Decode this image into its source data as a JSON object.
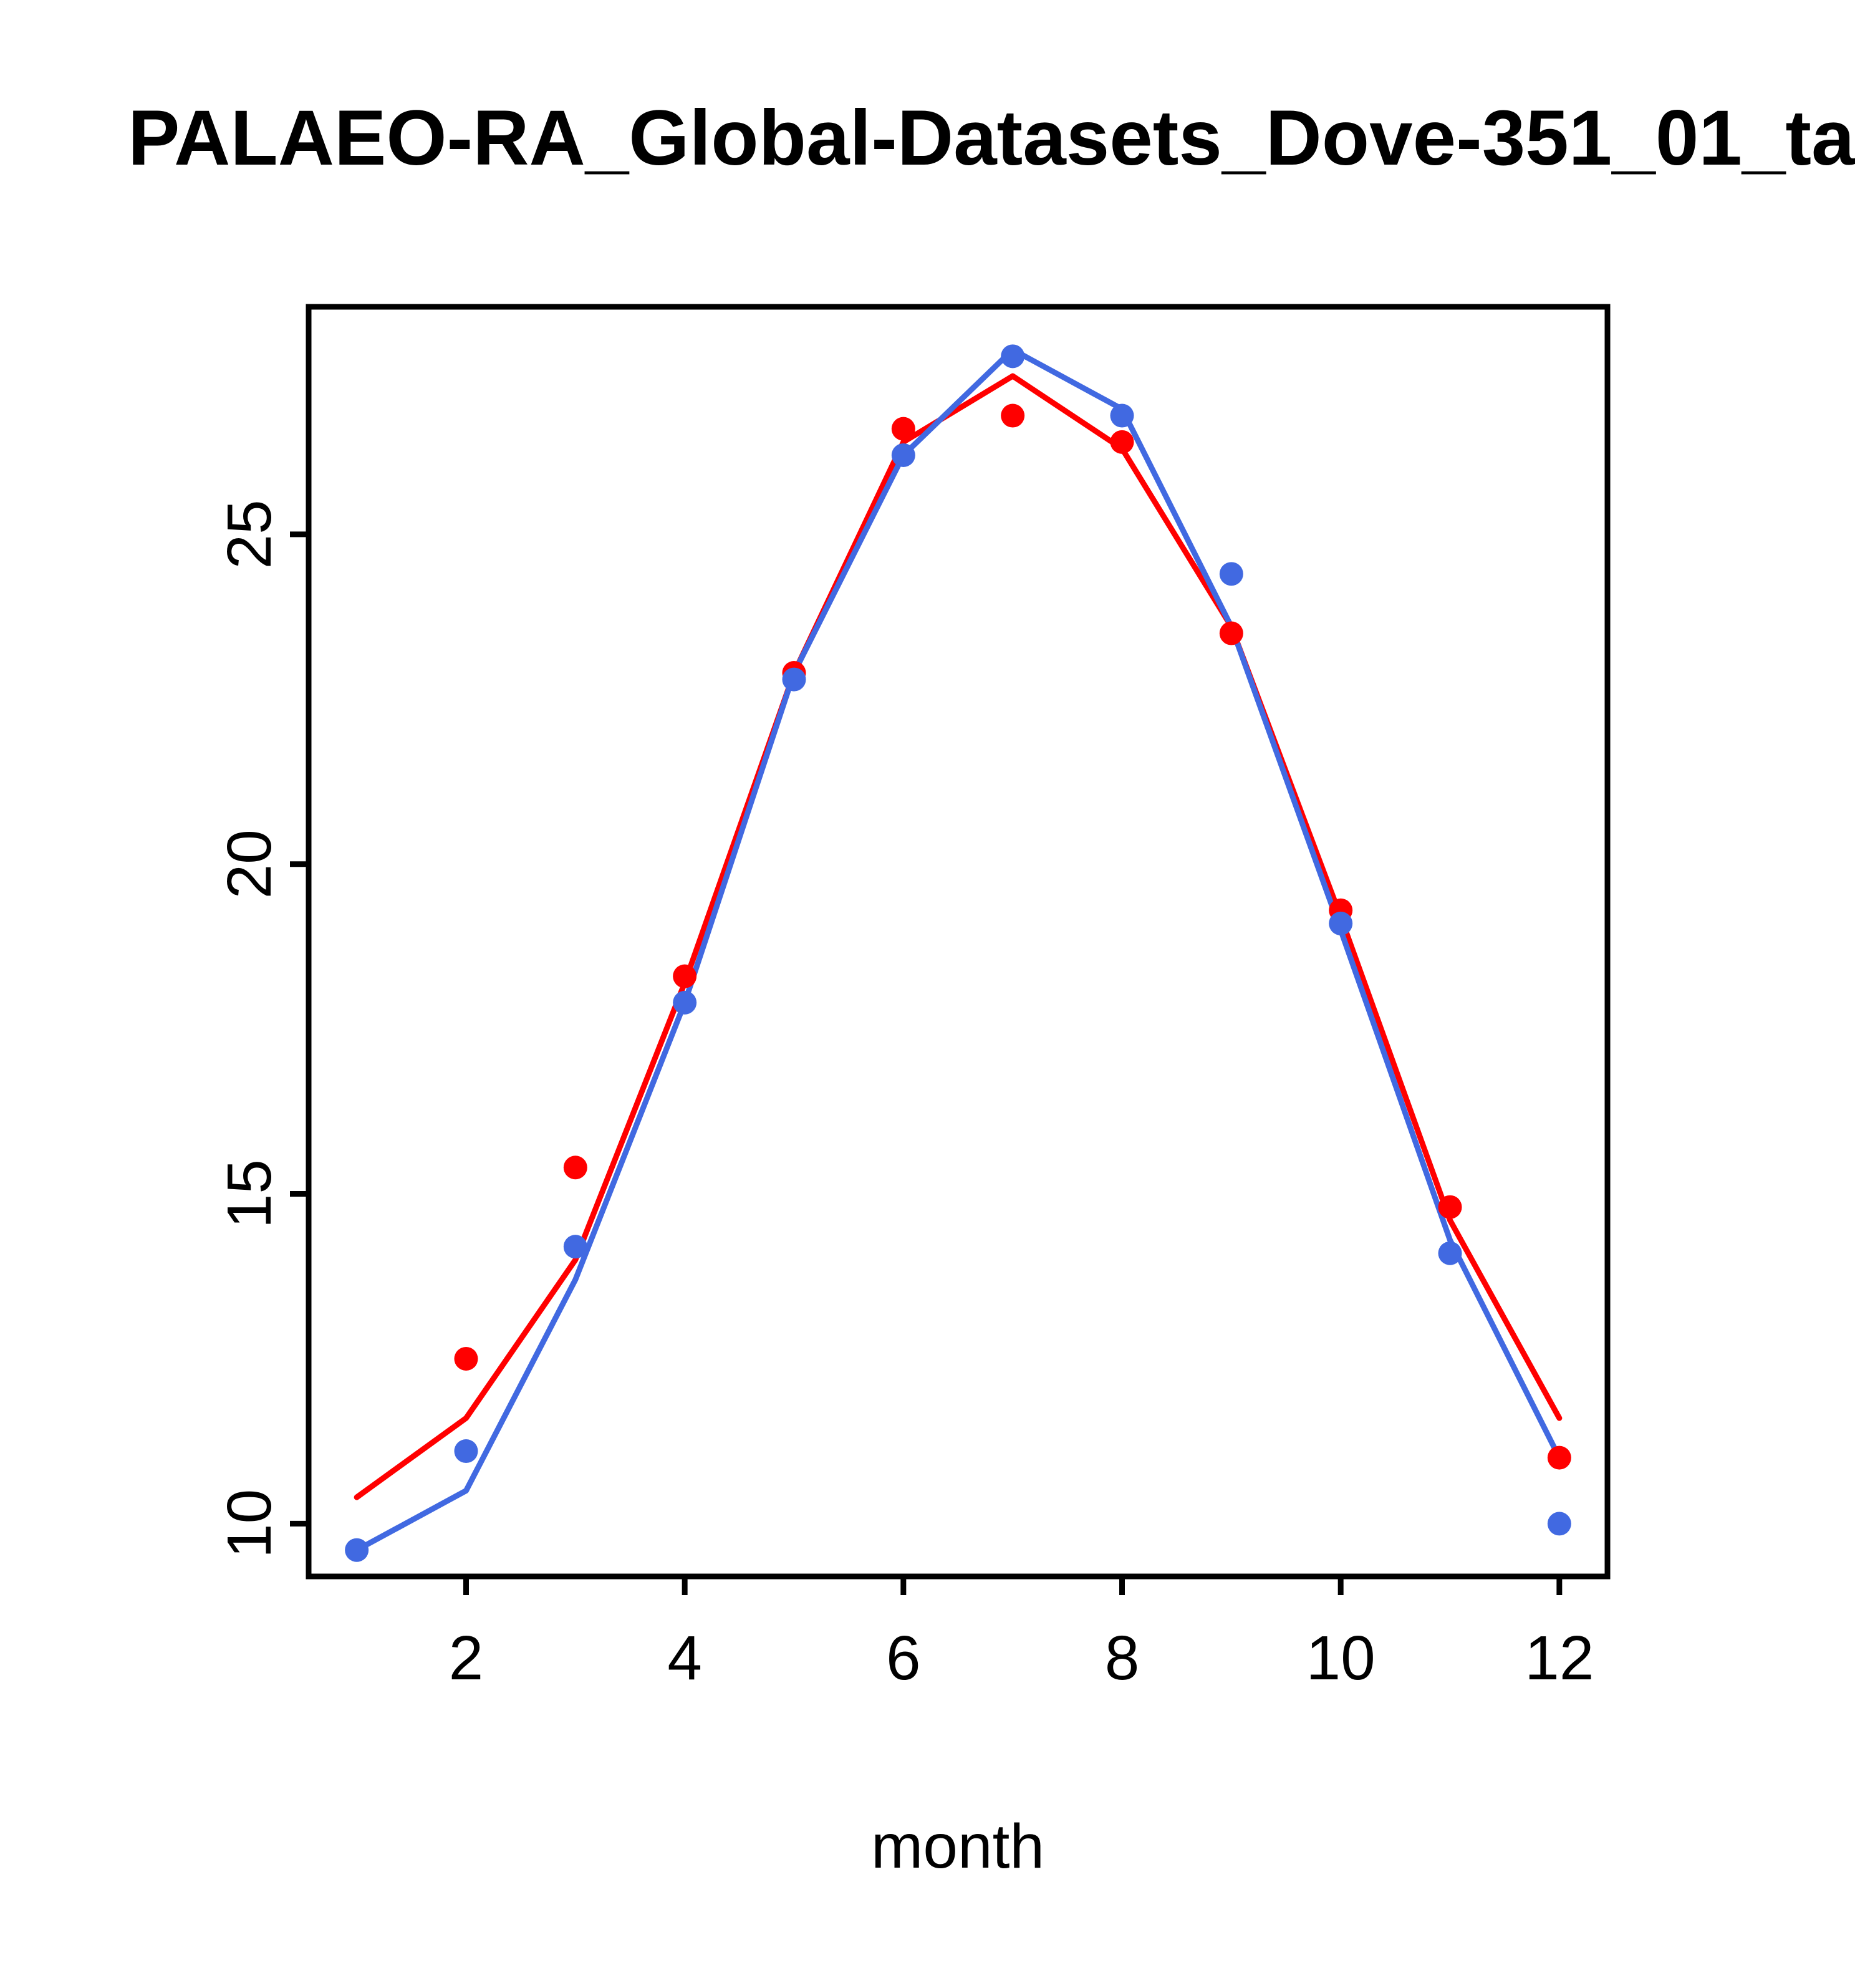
{
  "title": "PALAEO-RA_Global-Datasets_Dove-351_01_ta",
  "colors": {
    "red_series": "#FF0000",
    "blue_series": "#4169E1",
    "axis": "#000000",
    "background": "#FFFFFF"
  },
  "chart_data": {
    "type": "line",
    "title": "PALAEO-RA_Global-Datasets_Dove-351_01_ta",
    "xlabel": "month",
    "ylabel": "",
    "grid": false,
    "legend": "none",
    "x": [
      1,
      2,
      3,
      4,
      5,
      6,
      7,
      8,
      9,
      10,
      11,
      12
    ],
    "xticks": [
      2,
      4,
      6,
      8,
      10,
      12
    ],
    "yticks": [
      10,
      15,
      20,
      25
    ],
    "xlim": [
      0.56,
      12.44
    ],
    "ylim": [
      9.2,
      28.45
    ],
    "series": [
      {
        "name": "red-line",
        "type": "line",
        "color": "#FF0000",
        "values": [
          10.4,
          11.6,
          14.0,
          18.2,
          22.9,
          26.4,
          27.4,
          26.3,
          23.6,
          19.2,
          14.6,
          11.6
        ]
      },
      {
        "name": "blue-line",
        "type": "line",
        "color": "#4169E1",
        "values": [
          9.6,
          10.5,
          13.7,
          17.9,
          22.9,
          26.2,
          27.8,
          26.9,
          23.6,
          19.0,
          14.3,
          11.0
        ]
      },
      {
        "name": "red-points",
        "type": "points",
        "color": "#FF0000",
        "values": [
          null,
          12.5,
          15.4,
          18.3,
          22.9,
          26.6,
          26.8,
          26.4,
          23.5,
          19.3,
          14.8,
          11.0
        ]
      },
      {
        "name": "blue-points",
        "type": "points",
        "color": "#4169E1",
        "values": [
          9.6,
          11.1,
          14.2,
          17.9,
          22.8,
          26.2,
          27.7,
          26.8,
          24.4,
          19.1,
          14.1,
          10.0
        ]
      }
    ]
  }
}
